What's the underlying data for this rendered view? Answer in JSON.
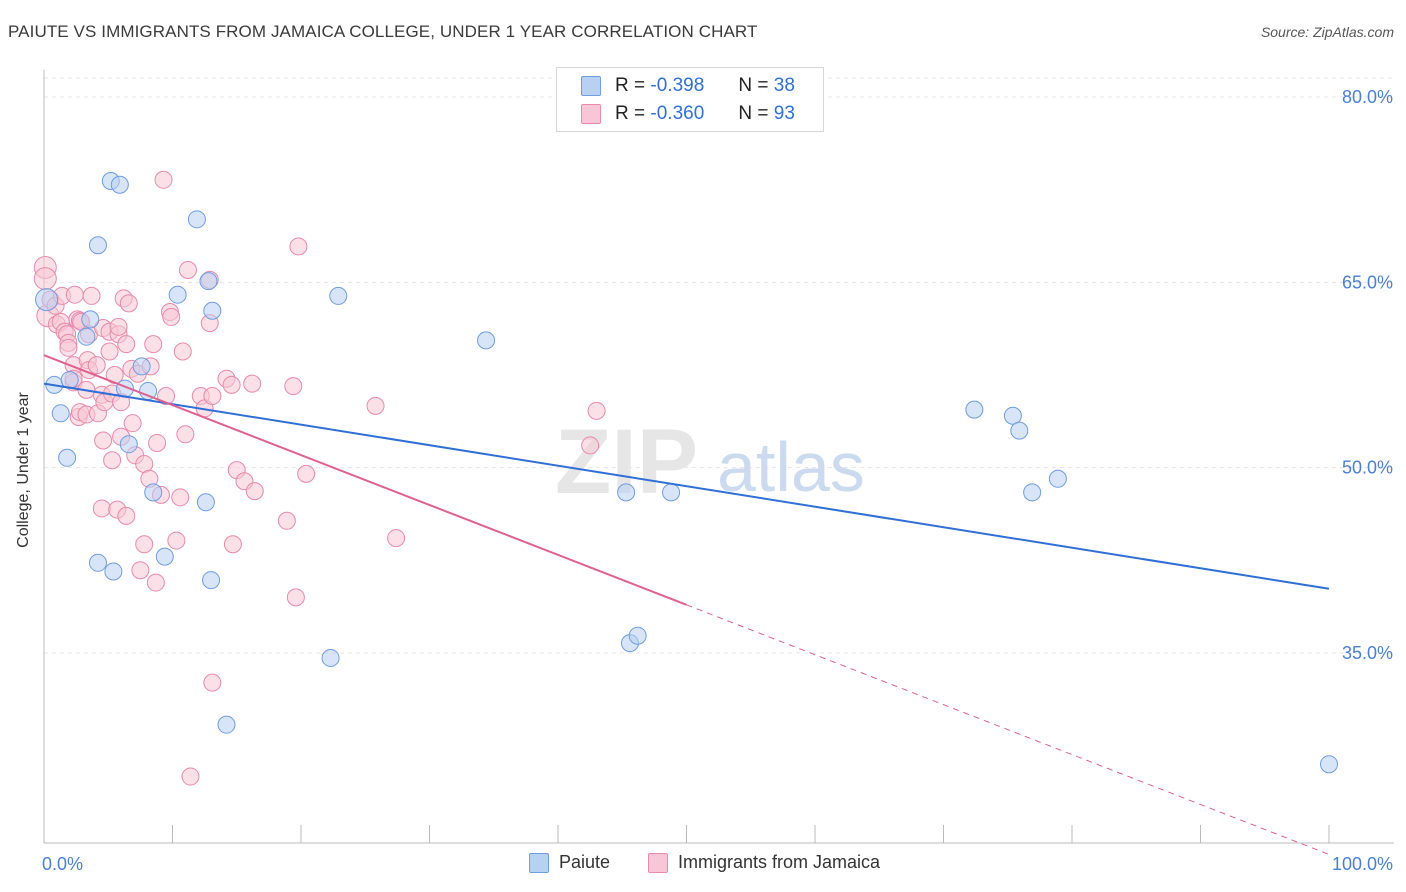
{
  "title": "PAIUTE VS IMMIGRANTS FROM JAMAICA COLLEGE, UNDER 1 YEAR CORRELATION CHART",
  "source": "Source: ZipAtlas.com",
  "watermark": {
    "zip": "ZIP",
    "atlas": "atlas"
  },
  "legend": {
    "r_label": "R =",
    "n_label": "N =",
    "rows": [
      {
        "name": "Paiute",
        "r": "-0.398",
        "n": "38",
        "fill": "#b8d0f2",
        "stroke": "#6f9de0"
      },
      {
        "name": "Immigrants from Jamaica",
        "r": "-0.360",
        "n": "93",
        "fill": "#f8c6d6",
        "stroke": "#e88aab"
      }
    ]
  },
  "chart_data": {
    "type": "scatter",
    "title": "PAIUTE VS IMMIGRANTS FROM JAMAICA COLLEGE, UNDER 1 YEAR CORRELATION CHART",
    "xlabel": "",
    "ylabel": "College, Under 1 year",
    "xlim": [
      0,
      105
    ],
    "ylim": [
      20,
      82
    ],
    "x_tick_labels": [
      "0.0%",
      "100.0%"
    ],
    "y_ticks": [
      35,
      50,
      65,
      80
    ],
    "y_tick_labels": [
      "35.0%",
      "50.0%",
      "65.0%",
      "80.0%"
    ],
    "grid": true,
    "series": [
      {
        "name": "Paiute",
        "color": "#6f9de0",
        "fill": "#b8d0f2",
        "line_color": "#2f6fd6",
        "trend": {
          "x0": 0.0,
          "y0": 56.8,
          "x1": 100.0,
          "y1": 40.2
        },
        "points": [
          [
            0.2,
            63.6
          ],
          [
            0.8,
            56.7
          ],
          [
            1.3,
            54.4
          ],
          [
            1.8,
            50.8
          ],
          [
            2.0,
            57.1
          ],
          [
            3.6,
            62.0
          ],
          [
            3.3,
            60.6
          ],
          [
            4.2,
            42.3
          ],
          [
            4.2,
            68.0
          ],
          [
            5.2,
            73.2
          ],
          [
            5.4,
            41.6
          ],
          [
            5.9,
            72.9
          ],
          [
            6.3,
            56.4
          ],
          [
            6.6,
            51.9
          ],
          [
            7.6,
            58.2
          ],
          [
            8.1,
            56.2
          ],
          [
            8.5,
            48.0
          ],
          [
            9.4,
            42.8
          ],
          [
            10.4,
            64.0
          ],
          [
            11.9,
            70.1
          ],
          [
            12.6,
            47.2
          ],
          [
            12.8,
            65.1
          ],
          [
            13.0,
            40.9
          ],
          [
            13.1,
            62.7
          ],
          [
            14.2,
            29.2
          ],
          [
            22.3,
            34.6
          ],
          [
            22.9,
            63.9
          ],
          [
            34.4,
            60.3
          ],
          [
            45.3,
            48.0
          ],
          [
            45.6,
            35.8
          ],
          [
            46.2,
            36.4
          ],
          [
            48.8,
            48.0
          ],
          [
            72.4,
            54.7
          ],
          [
            75.4,
            54.2
          ],
          [
            75.9,
            53.0
          ],
          [
            76.9,
            48.0
          ],
          [
            78.9,
            49.1
          ],
          [
            100.0,
            26.0
          ]
        ]
      },
      {
        "name": "Immigrants from Jamaica",
        "color": "#e88aab",
        "fill": "#f8c6d6",
        "line_color": "#e0608f",
        "trend": {
          "x0": 0.0,
          "y0": 59.1,
          "x1": 50.0,
          "y1": 38.9
        },
        "trend_ext": {
          "x0": 50.0,
          "y0": 38.9,
          "x1": 100.0,
          "y1": 18.7
        },
        "points": [
          [
            0.1,
            66.2
          ],
          [
            0.1,
            65.3
          ],
          [
            0.3,
            62.3
          ],
          [
            0.5,
            63.6
          ],
          [
            0.9,
            63.1
          ],
          [
            1.0,
            61.6
          ],
          [
            1.3,
            61.8
          ],
          [
            1.4,
            63.9
          ],
          [
            1.6,
            61.0
          ],
          [
            1.8,
            60.8
          ],
          [
            1.9,
            60.1
          ],
          [
            1.9,
            59.7
          ],
          [
            2.3,
            58.3
          ],
          [
            2.3,
            56.9
          ],
          [
            2.3,
            57.2
          ],
          [
            2.4,
            64.0
          ],
          [
            2.6,
            62.0
          ],
          [
            2.7,
            54.1
          ],
          [
            2.8,
            54.5
          ],
          [
            2.8,
            61.9
          ],
          [
            2.9,
            61.8
          ],
          [
            3.3,
            56.3
          ],
          [
            3.3,
            54.3
          ],
          [
            3.4,
            58.7
          ],
          [
            3.5,
            60.8
          ],
          [
            3.5,
            57.9
          ],
          [
            3.7,
            63.9
          ],
          [
            4.1,
            58.3
          ],
          [
            4.2,
            54.4
          ],
          [
            4.5,
            55.9
          ],
          [
            4.5,
            46.7
          ],
          [
            4.6,
            52.2
          ],
          [
            4.6,
            61.3
          ],
          [
            4.7,
            55.3
          ],
          [
            5.1,
            61.0
          ],
          [
            5.1,
            59.4
          ],
          [
            5.3,
            56.0
          ],
          [
            5.3,
            50.6
          ],
          [
            5.5,
            57.5
          ],
          [
            5.7,
            46.6
          ],
          [
            5.8,
            60.8
          ],
          [
            5.8,
            61.4
          ],
          [
            6.0,
            52.5
          ],
          [
            6.0,
            55.3
          ],
          [
            6.2,
            63.7
          ],
          [
            6.4,
            46.1
          ],
          [
            6.4,
            60.0
          ],
          [
            6.6,
            63.3
          ],
          [
            6.8,
            58.0
          ],
          [
            6.9,
            53.6
          ],
          [
            7.1,
            51.0
          ],
          [
            7.3,
            57.6
          ],
          [
            7.5,
            41.7
          ],
          [
            7.8,
            50.3
          ],
          [
            7.8,
            43.8
          ],
          [
            8.2,
            49.1
          ],
          [
            8.3,
            58.2
          ],
          [
            8.5,
            60.0
          ],
          [
            8.7,
            40.7
          ],
          [
            8.8,
            52.0
          ],
          [
            9.1,
            47.8
          ],
          [
            9.3,
            73.3
          ],
          [
            9.5,
            55.8
          ],
          [
            9.8,
            62.6
          ],
          [
            9.9,
            62.2
          ],
          [
            10.3,
            44.1
          ],
          [
            10.6,
            47.6
          ],
          [
            10.8,
            59.4
          ],
          [
            11.0,
            52.7
          ],
          [
            11.2,
            66.0
          ],
          [
            11.4,
            25.0
          ],
          [
            12.2,
            55.8
          ],
          [
            12.5,
            54.8
          ],
          [
            12.9,
            61.7
          ],
          [
            12.9,
            65.2
          ],
          [
            13.1,
            32.6
          ],
          [
            13.1,
            55.8
          ],
          [
            14.2,
            57.2
          ],
          [
            14.6,
            56.7
          ],
          [
            14.7,
            43.8
          ],
          [
            15.0,
            49.8
          ],
          [
            15.6,
            48.9
          ],
          [
            16.2,
            56.8
          ],
          [
            16.4,
            48.1
          ],
          [
            18.9,
            45.7
          ],
          [
            19.4,
            56.6
          ],
          [
            19.6,
            39.5
          ],
          [
            19.8,
            67.9
          ],
          [
            20.4,
            49.5
          ],
          [
            25.8,
            55.0
          ],
          [
            27.4,
            44.3
          ],
          [
            42.5,
            51.8
          ],
          [
            43.0,
            54.6
          ]
        ]
      }
    ]
  }
}
